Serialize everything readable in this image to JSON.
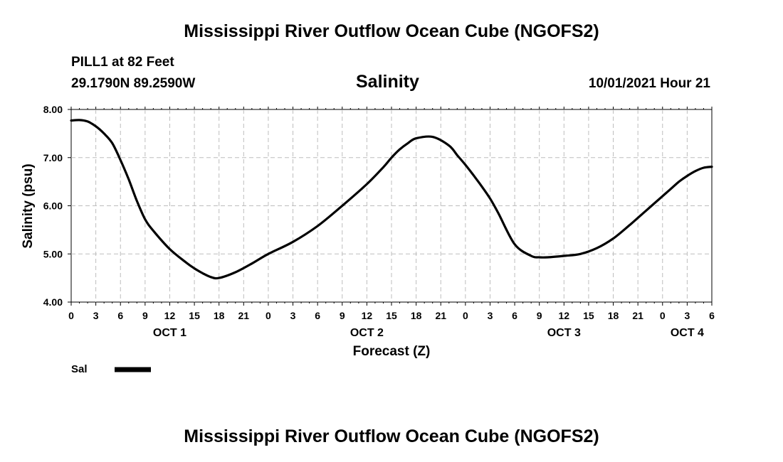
{
  "header": {
    "title": "Mississippi River Outflow Ocean Cube (NGOFS2)",
    "station": "PILL1 at 82 Feet",
    "coords": "29.1790N  89.2590W",
    "subtitle": "Salinity",
    "datetime": "10/01/2021 Hour 21"
  },
  "footer": {
    "title": "Mississippi River Outflow Ocean Cube (NGOFS2)"
  },
  "legend": {
    "label": "Sal",
    "color": "#000000"
  },
  "chart_data": {
    "type": "line",
    "title": "Salinity",
    "xlabel": "Forecast (Z)",
    "ylabel": "Salinity (psu)",
    "xlim": [
      0,
      78
    ],
    "ylim": [
      4.0,
      8.0
    ],
    "grid": true,
    "y_ticks": [
      "4.00",
      "5.00",
      "6.00",
      "7.00",
      "8.00"
    ],
    "x_tick_labels": [
      "0",
      "3",
      "6",
      "9",
      "12",
      "15",
      "18",
      "21",
      "0",
      "3",
      "6",
      "9",
      "12",
      "15",
      "18",
      "21",
      "0",
      "3",
      "6",
      "9",
      "12",
      "15",
      "18",
      "21",
      "0",
      "3",
      "6"
    ],
    "date_labels": [
      {
        "label": "OCT 1",
        "hour": 12
      },
      {
        "label": "OCT 2",
        "hour": 36
      },
      {
        "label": "OCT 3",
        "hour": 60
      },
      {
        "label": "OCT 4",
        "hour": 75
      }
    ],
    "series": [
      {
        "name": "Sal",
        "x": [
          0,
          1,
          2,
          3,
          4,
          5,
          6,
          7,
          8,
          9,
          10,
          12,
          14,
          15,
          16,
          17,
          18,
          20,
          22,
          24,
          27,
          30,
          33,
          36,
          38,
          39,
          40,
          41,
          42,
          44,
          46,
          47,
          48,
          49,
          50,
          51,
          52,
          54,
          56,
          57,
          58,
          60,
          62,
          64,
          66,
          68,
          70,
          72,
          73,
          74,
          75,
          76,
          77,
          78
        ],
        "y": [
          7.77,
          7.78,
          7.75,
          7.65,
          7.5,
          7.3,
          6.95,
          6.55,
          6.1,
          5.72,
          5.48,
          5.1,
          4.82,
          4.7,
          4.6,
          4.52,
          4.5,
          4.62,
          4.8,
          5.0,
          5.25,
          5.58,
          6.0,
          6.45,
          6.8,
          7.0,
          7.17,
          7.3,
          7.4,
          7.43,
          7.25,
          7.05,
          6.85,
          6.63,
          6.4,
          6.15,
          5.85,
          5.2,
          4.96,
          4.93,
          4.93,
          4.96,
          5.0,
          5.12,
          5.32,
          5.6,
          5.9,
          6.2,
          6.35,
          6.5,
          6.62,
          6.72,
          6.79,
          6.81
        ]
      }
    ]
  }
}
